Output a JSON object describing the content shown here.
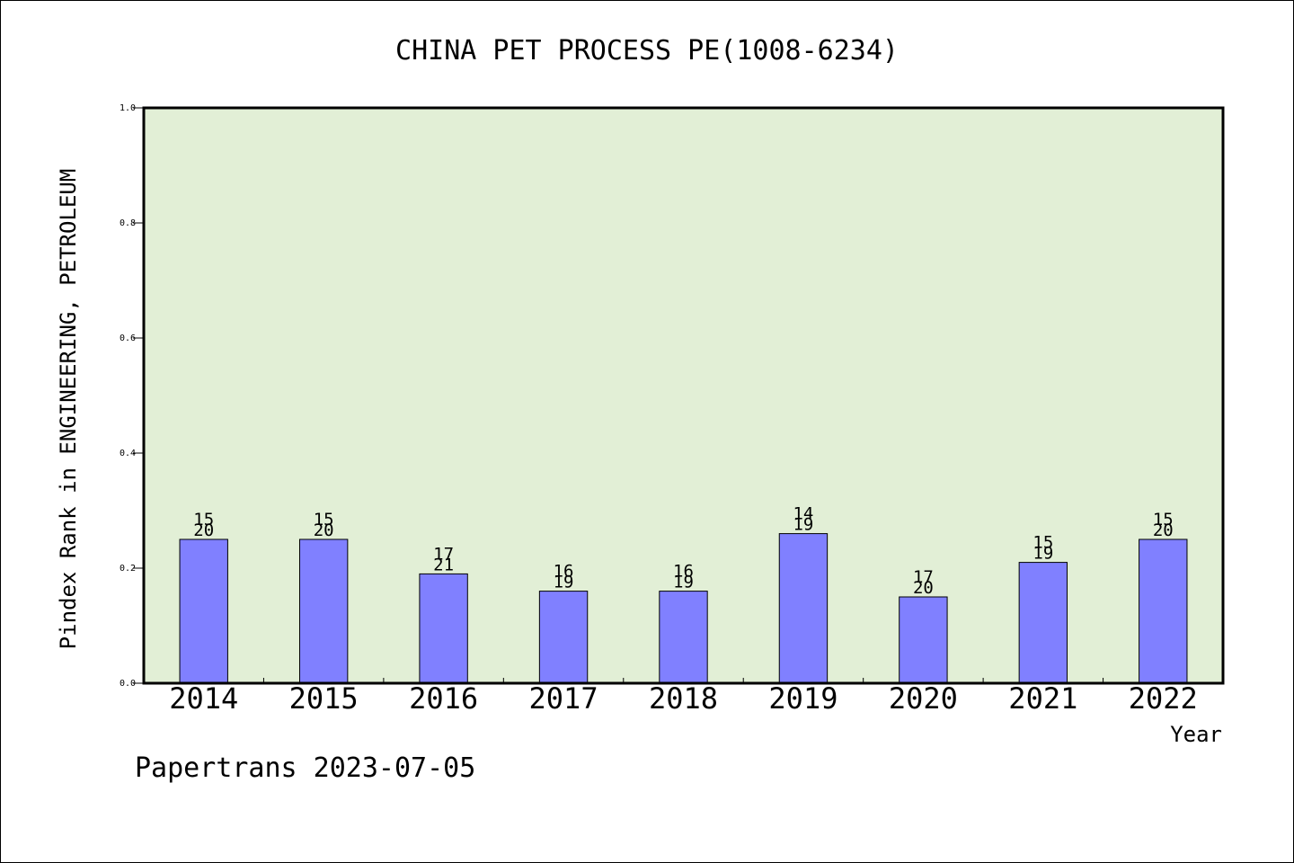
{
  "chart_data": {
    "type": "bar",
    "title": "CHINA PET PROCESS PE(1008-6234)",
    "xlabel": "Year",
    "ylabel": "Pindex Rank in ENGINEERING, PETROLEUM",
    "categories": [
      "2014",
      "2015",
      "2016",
      "2017",
      "2018",
      "2019",
      "2020",
      "2021",
      "2022"
    ],
    "values": [
      0.25,
      0.25,
      0.19,
      0.16,
      0.16,
      0.26,
      0.15,
      0.21,
      0.25
    ],
    "label_top": [
      "15",
      "15",
      "17",
      "16",
      "16",
      "14",
      "17",
      "15",
      "15"
    ],
    "label_bottom": [
      "20",
      "20",
      "21",
      "19",
      "19",
      "19",
      "20",
      "19",
      "20"
    ],
    "ylim": [
      0.0,
      1.0
    ],
    "yticks": [
      "0.0",
      "0.2",
      "0.4",
      "0.6",
      "0.8",
      "1.0"
    ],
    "grid": false,
    "colors": {
      "plot_background": "#e2efd6",
      "bar_fill": "#8080ff",
      "bar_stroke": "#000000"
    }
  },
  "footer": "Papertrans 2023-07-05"
}
